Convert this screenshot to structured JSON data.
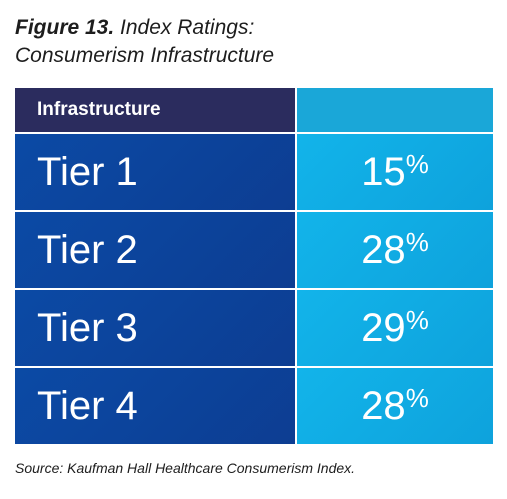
{
  "figure": {
    "label": "Figure 13.",
    "title_line1": "Index Ratings:",
    "title_line2": "Consumerism Infrastructure"
  },
  "table": {
    "header": "Infrastructure",
    "rows": [
      {
        "tier": "Tier 1",
        "value": "15",
        "unit": "%"
      },
      {
        "tier": "Tier 2",
        "value": "28",
        "unit": "%"
      },
      {
        "tier": "Tier 3",
        "value": "29",
        "unit": "%"
      },
      {
        "tier": "Tier 4",
        "value": "28",
        "unit": "%"
      }
    ]
  },
  "source": "Source: Kaufman Hall Healthcare Consumerism Index.",
  "colors": {
    "header_left": "#2b2c5e",
    "header_right": "#1aa7d8",
    "row_left": "#0d4499",
    "row_right": "#11aee4",
    "text": "#ffffff"
  },
  "chart_data": {
    "type": "table",
    "categories": [
      "Tier 1",
      "Tier 2",
      "Tier 3",
      "Tier 4"
    ],
    "values": [
      15,
      28,
      29,
      28
    ]
  }
}
